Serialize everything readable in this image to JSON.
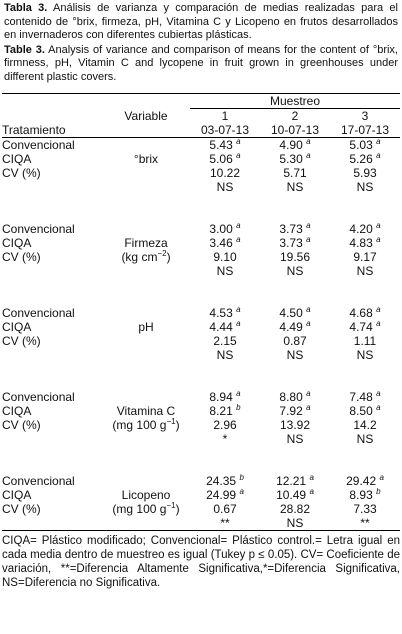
{
  "caption_es": {
    "label": "Tabla 3.",
    "text": "Análisis de varianza y comparación de medias realizadas para el contenido de °brix, firmeza, pH, Vitamina C y Licopeno en frutos desarrollados en invernaderos con diferentes cubiertas plásticas."
  },
  "caption_en": {
    "label": "Table 3.",
    "text": "Analysis of variance and comparison of means for the content of °brix, firmness, pH, Vitamin C and lycopene in fruit grown in greenhouses under different plastic covers."
  },
  "header": {
    "muestreo": "Muestreo",
    "tratamiento": "Tratamiento",
    "variable": "Variable",
    "samples": [
      {
        "number": "1",
        "date": "03-07-13"
      },
      {
        "number": "2",
        "date": "10-07-13"
      },
      {
        "number": "3",
        "date": "17-07-13"
      }
    ]
  },
  "groups": [
    {
      "variable": "°brix",
      "rows": [
        {
          "label": "Convencional",
          "cells": [
            {
              "value": "5.43",
              "letter": "a"
            },
            {
              "value": "4.90",
              "letter": "a"
            },
            {
              "value": "5.03",
              "letter": "a"
            }
          ]
        },
        {
          "label": "CIQA",
          "cells": [
            {
              "value": "5.06",
              "letter": "a"
            },
            {
              "value": "5.30",
              "letter": "a"
            },
            {
              "value": "5.26",
              "letter": "a"
            }
          ]
        },
        {
          "label": "CV (%)",
          "cells": [
            {
              "value": "10.22"
            },
            {
              "value": "5.71"
            },
            {
              "value": "5.93"
            }
          ]
        }
      ],
      "significance": [
        "NS",
        "NS",
        "NS"
      ]
    },
    {
      "variable": "Firmeza",
      "unit": {
        "pre": "(kg cm",
        "exp": "−2",
        "post": ")"
      },
      "rows": [
        {
          "label": "Convencional",
          "cells": [
            {
              "value": "3.00",
              "letter": "a"
            },
            {
              "value": "3.73",
              "letter": "a"
            },
            {
              "value": "4.20",
              "letter": "a"
            }
          ]
        },
        {
          "label": "CIQA",
          "cells": [
            {
              "value": "3.46",
              "letter": "a"
            },
            {
              "value": "3.73",
              "letter": "a"
            },
            {
              "value": "4.83",
              "letter": "a"
            }
          ]
        },
        {
          "label": "CV (%)",
          "cells": [
            {
              "value": "9.10"
            },
            {
              "value": "19.56"
            },
            {
              "value": "9.17"
            }
          ]
        }
      ],
      "significance": [
        "NS",
        "NS",
        "NS"
      ]
    },
    {
      "variable": "pH",
      "rows": [
        {
          "label": "Convencional",
          "cells": [
            {
              "value": "4.53",
              "letter": "a"
            },
            {
              "value": "4.50",
              "letter": "a"
            },
            {
              "value": "4.68",
              "letter": "a"
            }
          ]
        },
        {
          "label": "CIQA",
          "cells": [
            {
              "value": "4.44",
              "letter": "a"
            },
            {
              "value": "4.49",
              "letter": "a"
            },
            {
              "value": "4.74",
              "letter": "a"
            }
          ]
        },
        {
          "label": "CV (%)",
          "cells": [
            {
              "value": "2.15"
            },
            {
              "value": "0.87"
            },
            {
              "value": "1.11"
            }
          ]
        }
      ],
      "significance": [
        "NS",
        "NS",
        "NS"
      ]
    },
    {
      "variable": "Vitamina C",
      "unit": {
        "pre": "(mg 100 g",
        "exp": "−1",
        "post": ")"
      },
      "rows": [
        {
          "label": "Convencional",
          "cells": [
            {
              "value": "8.94",
              "letter": "a"
            },
            {
              "value": "8.80",
              "letter": "a"
            },
            {
              "value": "7.48",
              "letter": "a"
            }
          ]
        },
        {
          "label": "CIQA",
          "cells": [
            {
              "value": "8.21",
              "letter": "b"
            },
            {
              "value": "7.92",
              "letter": "a"
            },
            {
              "value": "8.50",
              "letter": "a"
            }
          ]
        },
        {
          "label": "CV (%)",
          "cells": [
            {
              "value": "2.96"
            },
            {
              "value": "13.92"
            },
            {
              "value": "14.2"
            }
          ]
        }
      ],
      "significance": [
        "*",
        "NS",
        "NS"
      ]
    },
    {
      "variable": "Licopeno",
      "unit": {
        "pre": "(mg 100 g",
        "exp": "−1",
        "post": ")"
      },
      "rows": [
        {
          "label": "Convencional",
          "cells": [
            {
              "value": "24.35",
              "letter": "b"
            },
            {
              "value": "12.21",
              "letter": "a"
            },
            {
              "value": "29.42",
              "letter": "a"
            }
          ]
        },
        {
          "label": "CIQA",
          "cells": [
            {
              "value": "24.99",
              "letter": "a"
            },
            {
              "value": "10.49",
              "letter": "a"
            },
            {
              "value": "8.93",
              "letter": "b"
            }
          ]
        },
        {
          "label": "CV (%)",
          "cells": [
            {
              "value": "0.67"
            },
            {
              "value": "28.82"
            },
            {
              "value": "7.33"
            }
          ]
        }
      ],
      "significance": [
        "**",
        "NS",
        "**"
      ]
    }
  ],
  "footnote": "CIQA= Plástico modificado; Convencional= Plástico control.= Letra igual en cada media dentro de muestreo es igual (Tukey p ≤ 0.05). CV= Coeficiente de variación, **=Diferencia Altamente Significativa,*=Diferencia Significativa, NS=Diferencia no Significativa."
}
